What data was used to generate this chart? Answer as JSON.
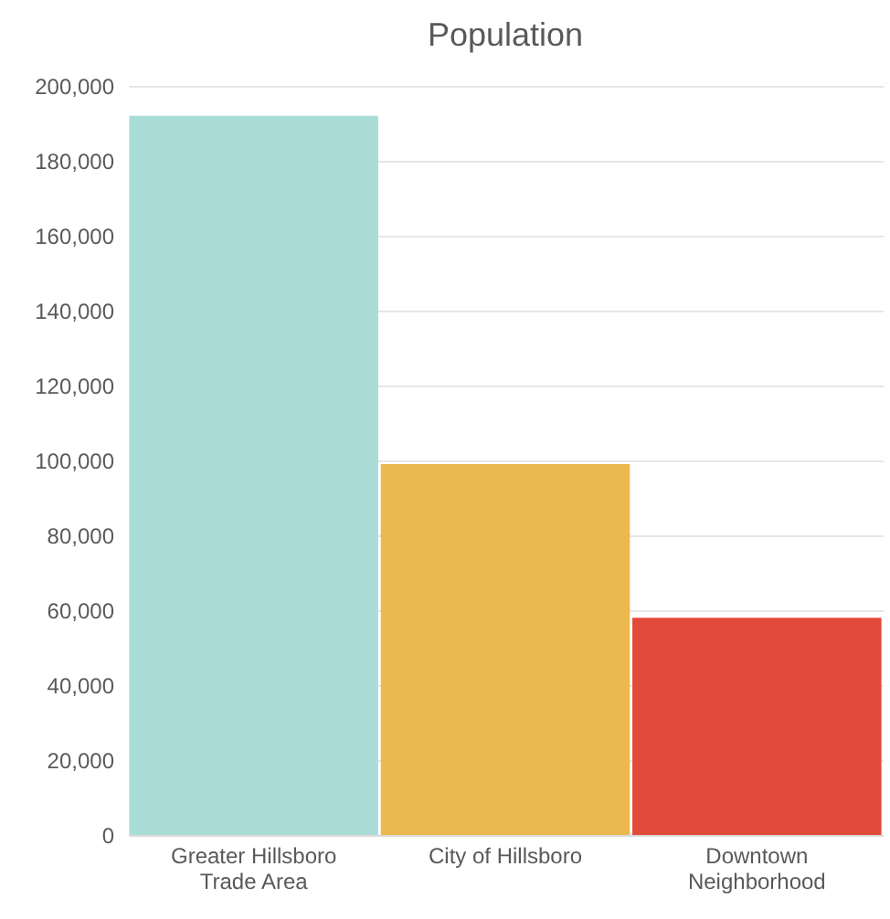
{
  "chart_data": {
    "type": "bar",
    "title": "Population",
    "categories": [
      "Greater Hillsboro Trade Area",
      "City of Hillsboro",
      "Downtown Neighborhood"
    ],
    "values": [
      192000,
      99000,
      58000
    ],
    "colors": [
      "#aaddd8",
      "#ecb94e",
      "#e24a3a"
    ],
    "ylim": [
      0,
      200000
    ],
    "yticks": [
      0,
      {
        "value": 20000,
        "label": "20,000"
      },
      {
        "value": 40000,
        "label": "40,000"
      },
      {
        "value": 60000,
        "label": "60,000"
      },
      {
        "value": 80000,
        "label": "80,000"
      },
      {
        "value": 100000,
        "label": "100,000"
      },
      {
        "value": 120000,
        "label": "120,000"
      },
      {
        "value": 140000,
        "label": "140,000"
      },
      {
        "value": 160000,
        "label": "160,000"
      },
      {
        "value": 180000,
        "label": "180,000"
      },
      {
        "value": 200000,
        "label": "200,000"
      }
    ],
    "grid": "y",
    "legend": false
  }
}
